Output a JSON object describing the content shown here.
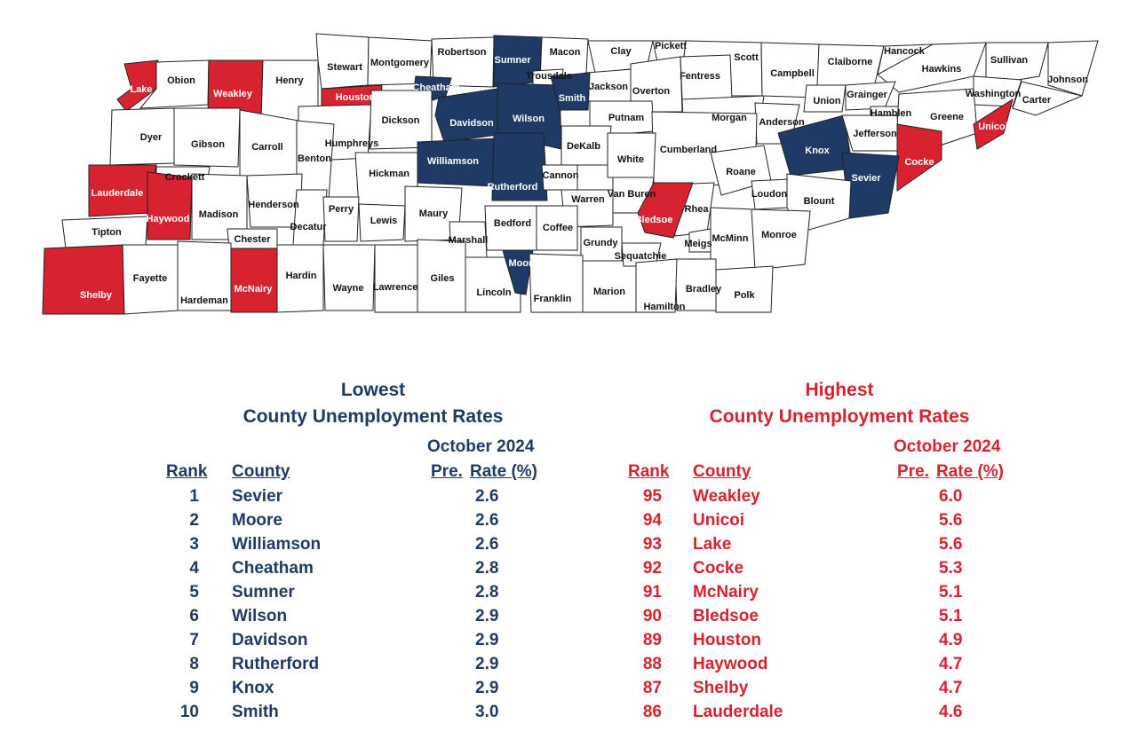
{
  "colors": {
    "lowest": "#1f3a64",
    "highest": "#d6232f",
    "neutral": "#ffffff",
    "border": "#222222"
  },
  "map_counties": [
    "Lake",
    "Obion",
    "Weakley",
    "Henry",
    "Stewart",
    "Montgomery",
    "Robertson",
    "Sumner",
    "Macon",
    "Clay",
    "Pickett",
    "Scott",
    "Campbell",
    "Claiborne",
    "Hancock",
    "Hawkins",
    "Sullivan",
    "Johnson",
    "Trousdale",
    "Jackson",
    "Overton",
    "Fentress",
    "Union",
    "Grainger",
    "Washington",
    "Carter",
    "Houston",
    "Cheatham",
    "Davidson",
    "Wilson",
    "Smith",
    "Putnam",
    "Morgan",
    "Anderson",
    "Hamblen",
    "Greene",
    "Unicoi",
    "Dyer",
    "Gibson",
    "Carroll",
    "Humphreys",
    "Dickson",
    "DeKalb",
    "Cumberland",
    "Knox",
    "Jefferson",
    "Cocke",
    "Benton",
    "Williamson",
    "White",
    "Crockett",
    "Lauderdale",
    "Hickman",
    "Rutherford",
    "Cannon",
    "Roane",
    "Sevier",
    "Haywood",
    "Madison",
    "Henderson",
    "Decatur",
    "Perry",
    "Lewis",
    "Maury",
    "Bedford",
    "Warren",
    "Van Buren",
    "Rhea",
    "Loudon",
    "Blount",
    "Bledsoe",
    "Tipton",
    "Chester",
    "Marshall",
    "Coffee",
    "Grundy",
    "Meigs",
    "McMinn",
    "Monroe",
    "Shelby",
    "Fayette",
    "Hardeman",
    "McNairy",
    "Hardin",
    "Wayne",
    "Lawrence",
    "Giles",
    "Lincoln",
    "Moore",
    "Franklin",
    "Marion",
    "Sequatchie",
    "Bradley",
    "Polk",
    "Hamilton"
  ],
  "lowest": {
    "title_line1": "Lowest",
    "title_line2": "County Unemployment Rates",
    "period": "October  2024",
    "col_rank": "Rank",
    "col_county": "County",
    "col_pre": "Pre.",
    "col_rate": "Rate (%)",
    "rows": [
      {
        "rank": "1",
        "county": "Sevier",
        "rate": "2.6"
      },
      {
        "rank": "2",
        "county": "Moore",
        "rate": "2.6"
      },
      {
        "rank": "3",
        "county": "Williamson",
        "rate": "2.6"
      },
      {
        "rank": "4",
        "county": "Cheatham",
        "rate": "2.8"
      },
      {
        "rank": "5",
        "county": "Sumner",
        "rate": "2.8"
      },
      {
        "rank": "6",
        "county": "Wilson",
        "rate": "2.9"
      },
      {
        "rank": "7",
        "county": "Davidson",
        "rate": "2.9"
      },
      {
        "rank": "8",
        "county": "Rutherford",
        "rate": "2.9"
      },
      {
        "rank": "9",
        "county": "Knox",
        "rate": "2.9"
      },
      {
        "rank": "10",
        "county": "Smith",
        "rate": "3.0"
      }
    ]
  },
  "highest": {
    "title_line1": "Highest",
    "title_line2": "County Unemployment Rates",
    "period": "October  2024",
    "col_rank": "Rank",
    "col_county": "County",
    "col_pre": "Pre.",
    "col_rate": "Rate (%)",
    "rows": [
      {
        "rank": "95",
        "county": "Weakley",
        "rate": "6.0"
      },
      {
        "rank": "94",
        "county": "Unicoi",
        "rate": "5.6"
      },
      {
        "rank": "93",
        "county": "Lake",
        "rate": "5.6"
      },
      {
        "rank": "92",
        "county": "Cocke",
        "rate": "5.3"
      },
      {
        "rank": "91",
        "county": "McNairy",
        "rate": "5.1"
      },
      {
        "rank": "90",
        "county": "Bledsoe",
        "rate": "5.1"
      },
      {
        "rank": "89",
        "county": "Houston",
        "rate": "4.9"
      },
      {
        "rank": "88",
        "county": "Haywood",
        "rate": "4.7"
      },
      {
        "rank": "87",
        "county": "Shelby",
        "rate": "4.7"
      },
      {
        "rank": "86",
        "county": "Lauderdale",
        "rate": "4.6"
      }
    ]
  }
}
